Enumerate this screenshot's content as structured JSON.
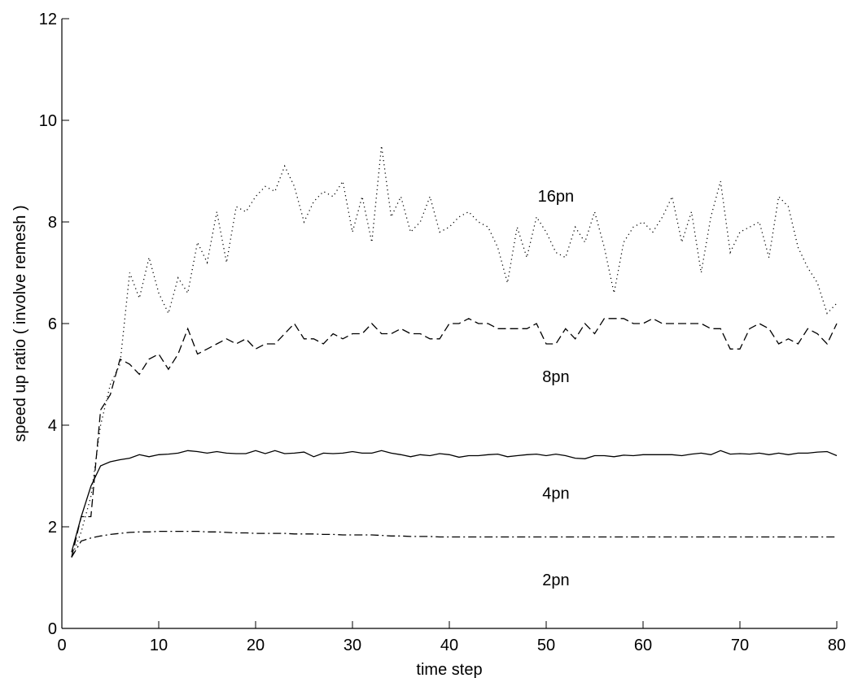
{
  "chart_data": {
    "type": "line",
    "title": "",
    "xlabel": "time step",
    "ylabel": "speed up ratio ( involve remesh )",
    "xlim": [
      0,
      80
    ],
    "ylim": [
      0,
      12
    ],
    "xticks": [
      0,
      10,
      20,
      30,
      40,
      50,
      60,
      70,
      80
    ],
    "yticks": [
      0,
      2,
      4,
      6,
      8,
      10,
      12
    ],
    "grid": false,
    "legend": "none",
    "series": [
      {
        "name": "16pn",
        "style": "dotted",
        "x": [
          1,
          2,
          3,
          4,
          5,
          6,
          7,
          8,
          9,
          10,
          11,
          12,
          13,
          14,
          15,
          16,
          17,
          18,
          19,
          20,
          21,
          22,
          23,
          24,
          25,
          26,
          27,
          28,
          29,
          30,
          31,
          32,
          33,
          34,
          35,
          36,
          37,
          38,
          39,
          40,
          41,
          42,
          43,
          44,
          45,
          46,
          47,
          48,
          49,
          50,
          51,
          52,
          53,
          54,
          55,
          56,
          57,
          58,
          59,
          60,
          61,
          62,
          63,
          64,
          65,
          66,
          67,
          68,
          69,
          70,
          71,
          72,
          73,
          74,
          75,
          76,
          77,
          78,
          79,
          80
        ],
        "y": [
          1.4,
          1.9,
          2.6,
          4.0,
          4.8,
          5.2,
          7.0,
          6.5,
          7.3,
          6.6,
          6.2,
          6.9,
          6.6,
          7.6,
          7.2,
          8.2,
          7.2,
          8.3,
          8.2,
          8.5,
          8.7,
          8.6,
          9.1,
          8.7,
          8.0,
          8.4,
          8.6,
          8.5,
          8.8,
          7.8,
          8.5,
          7.6,
          9.5,
          8.1,
          8.5,
          7.8,
          8.0,
          8.5,
          7.8,
          7.9,
          8.1,
          8.2,
          8.0,
          7.9,
          7.5,
          6.8,
          7.9,
          7.3,
          8.1,
          7.8,
          7.4,
          7.3,
          7.9,
          7.6,
          8.2,
          7.5,
          6.6,
          7.6,
          7.9,
          8.0,
          7.8,
          8.1,
          8.5,
          7.6,
          8.2,
          7.0,
          8.1,
          8.8,
          7.4,
          7.8,
          7.9,
          8.0,
          7.3,
          8.5,
          8.3,
          7.5,
          7.1,
          6.8,
          6.2,
          6.4
        ]
      },
      {
        "name": "8pn",
        "style": "dashed",
        "x": [
          1,
          2,
          3,
          4,
          5,
          6,
          7,
          8,
          9,
          10,
          11,
          12,
          13,
          14,
          15,
          16,
          17,
          18,
          19,
          20,
          21,
          22,
          23,
          24,
          25,
          26,
          27,
          28,
          29,
          30,
          31,
          32,
          33,
          34,
          35,
          36,
          37,
          38,
          39,
          40,
          41,
          42,
          43,
          44,
          45,
          46,
          47,
          48,
          49,
          50,
          51,
          52,
          53,
          54,
          55,
          56,
          57,
          58,
          59,
          60,
          61,
          62,
          63,
          64,
          65,
          66,
          67,
          68,
          69,
          70,
          71,
          72,
          73,
          74,
          75,
          76,
          77,
          78,
          79,
          80
        ],
        "y": [
          1.4,
          2.2,
          2.2,
          4.3,
          4.6,
          5.3,
          5.2,
          5.0,
          5.3,
          5.4,
          5.1,
          5.4,
          5.9,
          5.4,
          5.5,
          5.6,
          5.7,
          5.6,
          5.7,
          5.5,
          5.6,
          5.6,
          5.8,
          6.0,
          5.7,
          5.7,
          5.6,
          5.8,
          5.7,
          5.8,
          5.8,
          6.0,
          5.8,
          5.8,
          5.9,
          5.8,
          5.8,
          5.7,
          5.7,
          6.0,
          6.0,
          6.1,
          6.0,
          6.0,
          5.9,
          5.9,
          5.9,
          5.9,
          6.0,
          5.6,
          5.6,
          5.9,
          5.7,
          6.0,
          5.8,
          6.1,
          6.1,
          6.1,
          6.0,
          6.0,
          6.1,
          6.0,
          6.0,
          6.0,
          6.0,
          6.0,
          5.9,
          5.9,
          5.5,
          5.5,
          5.9,
          6.0,
          5.9,
          5.6,
          5.7,
          5.6,
          5.9,
          5.8,
          5.6,
          6.0
        ]
      },
      {
        "name": "4pn",
        "style": "solid",
        "x": [
          1,
          2,
          3,
          4,
          5,
          6,
          7,
          8,
          9,
          10,
          11,
          12,
          13,
          14,
          15,
          16,
          17,
          18,
          19,
          20,
          21,
          22,
          23,
          24,
          25,
          26,
          27,
          28,
          29,
          30,
          31,
          32,
          33,
          34,
          35,
          36,
          37,
          38,
          39,
          40,
          41,
          42,
          43,
          44,
          45,
          46,
          47,
          48,
          49,
          50,
          51,
          52,
          53,
          54,
          55,
          56,
          57,
          58,
          59,
          60,
          61,
          62,
          63,
          64,
          65,
          66,
          67,
          68,
          69,
          70,
          71,
          72,
          73,
          74,
          75,
          76,
          77,
          78,
          79,
          80
        ],
        "y": [
          1.5,
          2.2,
          2.8,
          3.2,
          3.28,
          3.32,
          3.35,
          3.42,
          3.38,
          3.42,
          3.43,
          3.45,
          3.5,
          3.48,
          3.45,
          3.48,
          3.45,
          3.44,
          3.44,
          3.5,
          3.44,
          3.5,
          3.44,
          3.45,
          3.47,
          3.38,
          3.45,
          3.44,
          3.45,
          3.48,
          3.45,
          3.45,
          3.5,
          3.45,
          3.42,
          3.38,
          3.42,
          3.4,
          3.44,
          3.42,
          3.37,
          3.4,
          3.4,
          3.42,
          3.43,
          3.38,
          3.4,
          3.42,
          3.43,
          3.4,
          3.43,
          3.4,
          3.35,
          3.34,
          3.4,
          3.4,
          3.38,
          3.41,
          3.4,
          3.42,
          3.42,
          3.42,
          3.42,
          3.4,
          3.43,
          3.45,
          3.42,
          3.5,
          3.43,
          3.44,
          3.43,
          3.45,
          3.42,
          3.45,
          3.42,
          3.45,
          3.45,
          3.47,
          3.48,
          3.4
        ]
      },
      {
        "name": "2pn",
        "style": "dashdot",
        "x": [
          1,
          2,
          3,
          4,
          5,
          6,
          7,
          8,
          9,
          10,
          11,
          12,
          13,
          14,
          15,
          16,
          17,
          18,
          19,
          20,
          21,
          22,
          23,
          24,
          25,
          26,
          27,
          28,
          29,
          30,
          31,
          32,
          33,
          34,
          35,
          36,
          37,
          38,
          39,
          40,
          41,
          42,
          43,
          44,
          45,
          46,
          47,
          48,
          49,
          50,
          51,
          52,
          53,
          54,
          55,
          56,
          57,
          58,
          59,
          60,
          61,
          62,
          63,
          64,
          65,
          66,
          67,
          68,
          69,
          70,
          71,
          72,
          73,
          74,
          75,
          76,
          77,
          78,
          79,
          80
        ],
        "y": [
          1.4,
          1.72,
          1.78,
          1.82,
          1.85,
          1.87,
          1.89,
          1.9,
          1.9,
          1.91,
          1.91,
          1.91,
          1.91,
          1.91,
          1.9,
          1.9,
          1.89,
          1.88,
          1.88,
          1.87,
          1.87,
          1.87,
          1.87,
          1.86,
          1.86,
          1.86,
          1.85,
          1.85,
          1.84,
          1.84,
          1.84,
          1.84,
          1.83,
          1.82,
          1.82,
          1.81,
          1.81,
          1.81,
          1.8,
          1.8,
          1.8,
          1.8,
          1.8,
          1.8,
          1.8,
          1.8,
          1.8,
          1.8,
          1.8,
          1.8,
          1.8,
          1.8,
          1.8,
          1.8,
          1.8,
          1.8,
          1.8,
          1.8,
          1.8,
          1.8,
          1.8,
          1.8,
          1.8,
          1.8,
          1.8,
          1.8,
          1.8,
          1.8,
          1.8,
          1.8,
          1.8,
          1.8,
          1.8,
          1.8,
          1.8,
          1.8,
          1.8,
          1.8,
          1.8,
          1.8
        ]
      }
    ],
    "annotations": [
      {
        "text": "16pn",
        "x": 51,
        "y": 8.4
      },
      {
        "text": "8pn",
        "x": 51,
        "y": 4.85
      },
      {
        "text": "4pn",
        "x": 51,
        "y": 2.55
      },
      {
        "text": "2pn",
        "x": 51,
        "y": 0.85
      }
    ]
  }
}
